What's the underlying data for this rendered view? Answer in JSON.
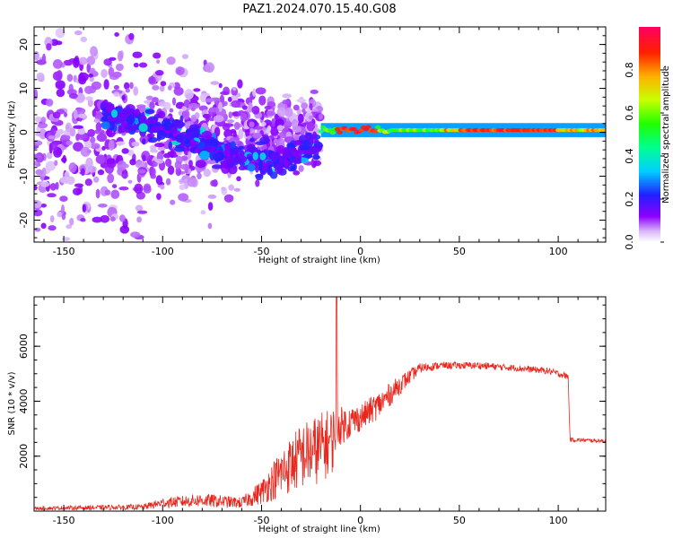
{
  "title": "PAZ1.2024.070.15.40.G08",
  "chart_data": [
    {
      "type": "heatmap",
      "xlabel": "Height of straight line (km)",
      "ylabel": "Frequency (Hz)",
      "xlim": [
        -165,
        124
      ],
      "ylim": [
        -25,
        24
      ],
      "xticks": [
        "-150",
        "-100",
        "-50",
        "0",
        "50",
        "100"
      ],
      "yticks": [
        "-20",
        "-10",
        "0",
        "10",
        "20"
      ],
      "colorbar": {
        "label": "Normalized spectral amplitude",
        "ticks": [
          "0.0",
          "0.2",
          "0.4",
          "0.6",
          "0.8"
        ],
        "range": [
          0,
          1
        ],
        "colormap": "gist_rainbow_r with white at zero"
      },
      "structure": {
        "scatter_region_km": [
          -165,
          -20
        ],
        "descending_branch": [
          {
            "x": -120,
            "f": 3
          },
          {
            "x": -90,
            "f": 0
          },
          {
            "x": -70,
            "f": -5
          },
          {
            "x": -40,
            "f": -7
          },
          {
            "x": -25,
            "f": -3
          }
        ],
        "steady_line_km": [
          -20,
          124
        ],
        "steady_line_freq_hz": 0.5,
        "steady_line_amplitude": 0.9
      }
    },
    {
      "type": "line",
      "xlabel": "Height of straight line (km)",
      "ylabel": "SNR (10 * v/v)",
      "xlim": [
        -165,
        124
      ],
      "ylim": [
        0,
        7800
      ],
      "xticks": [
        "-150",
        "-100",
        "-50",
        "0",
        "50",
        "100"
      ],
      "yticks": [
        "2000",
        "4000",
        "6000"
      ],
      "color": "#e8281e",
      "envelope": {
        "x": [
          -165,
          -110,
          -100,
          -80,
          -60,
          -50,
          -40,
          -30,
          -20,
          -14,
          -12,
          -10,
          0,
          10,
          20,
          30,
          40,
          60,
          80,
          95,
          105,
          106,
          124
        ],
        "mean": [
          100,
          150,
          300,
          400,
          300,
          700,
          1400,
          2000,
          2300,
          2600,
          3200,
          3100,
          3400,
          3900,
          4600,
          5200,
          5300,
          5300,
          5200,
          5100,
          4900,
          2600,
          2550
        ],
        "noise": [
          60,
          100,
          180,
          250,
          200,
          450,
          900,
          1200,
          1300,
          1200,
          800,
          700,
          500,
          500,
          350,
          180,
          130,
          130,
          120,
          120,
          120,
          80,
          60
        ]
      },
      "spike": {
        "x": -12,
        "y": 7800
      }
    }
  ]
}
